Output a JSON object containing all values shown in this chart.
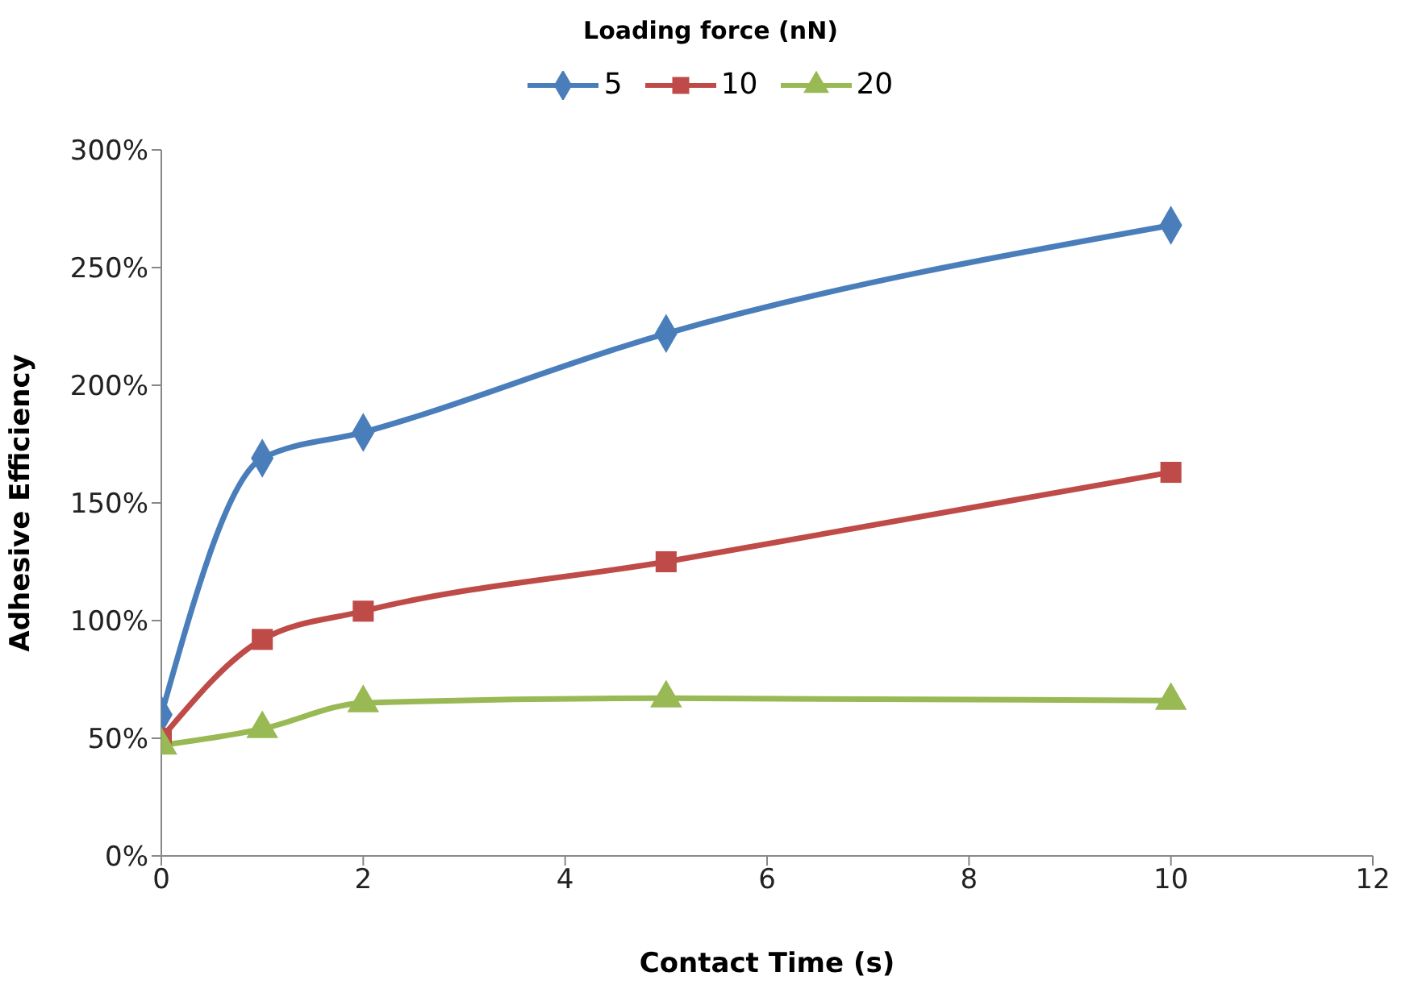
{
  "chart_data": {
    "type": "line",
    "legend_title": "Loading force (nN)",
    "xlabel": "Contact Time (s)",
    "ylabel": "Adhesive Efficiency",
    "x": [
      0,
      1,
      2,
      5,
      10
    ],
    "series": [
      {
        "name": "5",
        "color": "#4a7ebb",
        "marker": "diamond",
        "values": [
          60,
          169,
          180,
          222,
          268
        ]
      },
      {
        "name": "10",
        "color": "#be4b48",
        "marker": "square",
        "values": [
          50,
          92,
          104,
          125,
          163
        ]
      },
      {
        "name": "20",
        "color": "#98b954",
        "marker": "triangle",
        "values": [
          47,
          54,
          65,
          67,
          66
        ]
      }
    ],
    "xlim": [
      0,
      12
    ],
    "xticks": [
      0,
      2,
      4,
      6,
      8,
      10,
      12
    ],
    "ylim": [
      0,
      300
    ],
    "yticks": [
      {
        "value": 0,
        "label": "0%"
      },
      {
        "value": 50,
        "label": "50%"
      },
      {
        "value": 100,
        "label": "100%"
      },
      {
        "value": 150,
        "label": "150%"
      },
      {
        "value": 200,
        "label": "200%"
      },
      {
        "value": 250,
        "label": "250%"
      },
      {
        "value": 300,
        "label": "300%"
      }
    ],
    "grid": false,
    "legend": "top",
    "line_style": "solid"
  }
}
